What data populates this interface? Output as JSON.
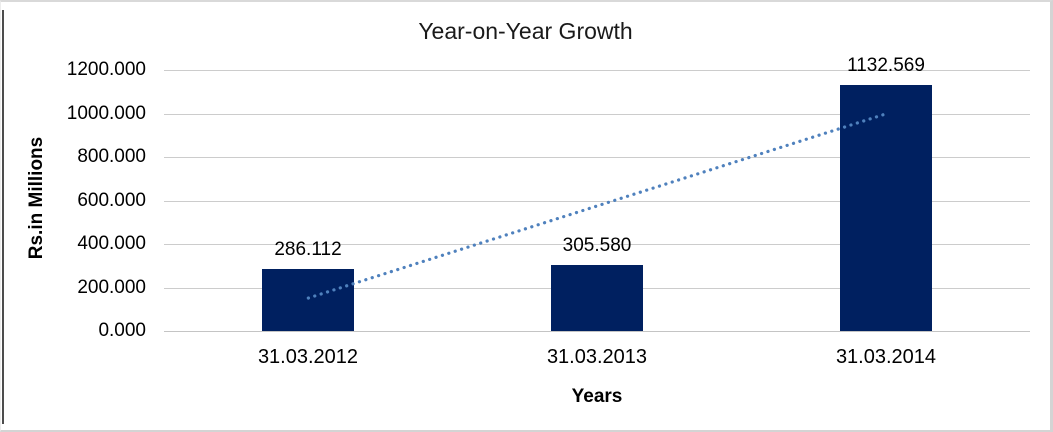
{
  "chart_data": {
    "type": "bar",
    "title": "Year-on-Year Growth",
    "xlabel": "Years",
    "ylabel": "Rs.in Millions",
    "categories": [
      "31.03.2012",
      "31.03.2013",
      "31.03.2014"
    ],
    "values": [
      286.112,
      305.58,
      1132.569
    ],
    "data_labels": [
      "286.112",
      "305.580",
      "1132.569"
    ],
    "ylim": [
      0,
      1200
    ],
    "ytick_step": 200,
    "ytick_labels": [
      "0.000",
      "200.000",
      "400.000",
      "600.000",
      "800.000",
      "1000.000",
      "1200.000"
    ],
    "grid": true,
    "legend": "none",
    "bar_color": "#002060",
    "gridline_color": "#cccccc",
    "trendline": {
      "type": "linear",
      "style": "dotted",
      "color": "#4f81bd",
      "y_at_first_category": 151.5,
      "y_at_last_category": 998.0
    }
  }
}
